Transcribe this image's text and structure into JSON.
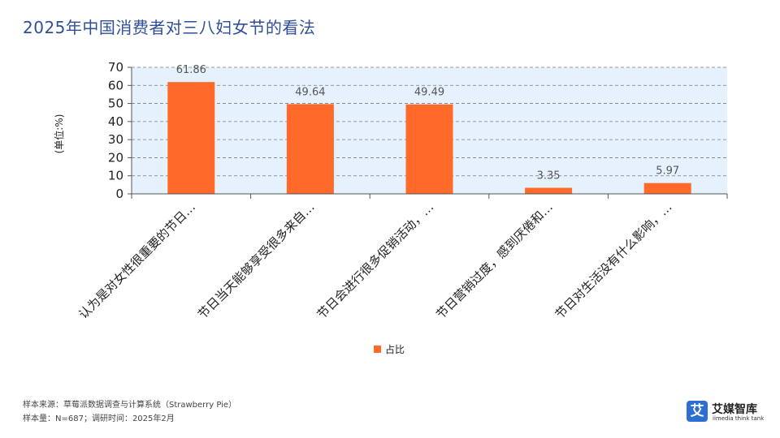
{
  "title": "2025年中国消费者对三八妇女节的看法",
  "chart_data": {
    "type": "bar",
    "categories": [
      "认为是对女性很重要的节日…",
      "节日当天能够享受很多来自…",
      "节日会进行很多促销活动，…",
      "节日营销过度，感到厌倦和…",
      "节日对生活没有什么影响，…"
    ],
    "series": [
      {
        "name": "占比",
        "values": [
          61.86,
          49.64,
          49.49,
          3.35,
          5.97
        ]
      }
    ],
    "data_labels": [
      "61.86",
      "49.64",
      "49.49",
      "3.35",
      "5.97"
    ],
    "ylabel": "(单位:%)",
    "ylim": [
      0,
      70
    ],
    "yticks": [
      "0",
      "10",
      "20",
      "30",
      "40",
      "50",
      "60",
      "70"
    ],
    "grid": true,
    "legend_position": "bottom",
    "bar_color": "#ff6a2a",
    "plot_background": "#e5f2fd"
  },
  "footer": {
    "source": "样本来源：草莓派数据调查与计算系统（Strawberry Pie）",
    "sample": "样本量：N=687；调研时间：2025年2月"
  },
  "logo": {
    "icon_char": "艾",
    "cn": "艾媒智库",
    "en": "iimedia think tank",
    "color": "#2d6fd1"
  }
}
